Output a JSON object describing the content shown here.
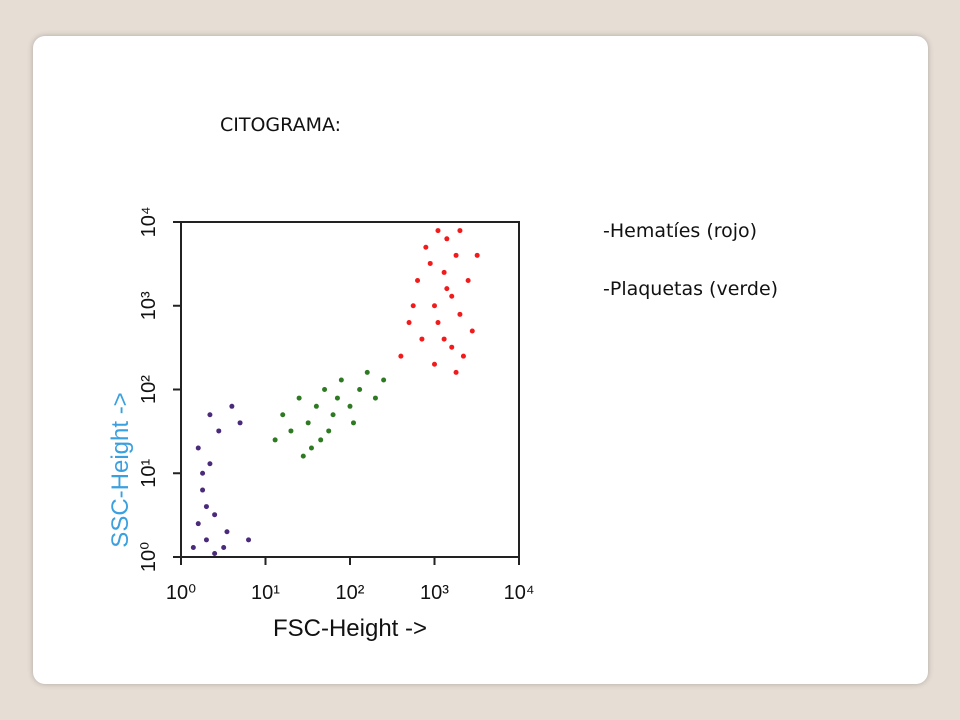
{
  "slide": {
    "heading": "CITOGRAMA:",
    "items": [
      "-Hematíes (rojo)",
      "-Plaquetas (verde)"
    ]
  },
  "chart_data": {
    "type": "scatter",
    "x_label": "FSC-Height ->",
    "y_label": "SSC-Height ->",
    "x_log": true,
    "y_log": true,
    "xlim": [
      1,
      10000
    ],
    "ylim": [
      1,
      10000
    ],
    "xticks": [
      {
        "value": 1,
        "label": "10⁰"
      },
      {
        "value": 10,
        "label": "10¹"
      },
      {
        "value": 100,
        "label": "10²"
      },
      {
        "value": 1000,
        "label": "10³"
      },
      {
        "value": 10000,
        "label": "10⁴"
      }
    ],
    "yticks": [
      {
        "value": 1,
        "label": "10⁰"
      },
      {
        "value": 10,
        "label": "10¹"
      },
      {
        "value": 100,
        "label": "10²"
      },
      {
        "value": 1000,
        "label": "10³"
      },
      {
        "value": 10000,
        "label": "10⁴"
      }
    ],
    "series": [
      {
        "color": "#f21a1a",
        "x": [
          400,
          500,
          630,
          790,
          1000,
          1000,
          1100,
          1300,
          1300,
          1400,
          1600,
          1600,
          1800,
          2000,
          2000,
          2200,
          2500,
          2800,
          3200,
          710,
          890,
          1100,
          1800,
          1400,
          560
        ],
        "values": [
          250,
          630,
          2000,
          5000,
          200,
          1000,
          7900,
          400,
          2500,
          6300,
          320,
          1300,
          4000,
          790,
          7900,
          250,
          2000,
          500,
          4000,
          400,
          3200,
          630,
          160,
          1600,
          1000
        ]
      },
      {
        "color": "#2e7a22",
        "x": [
          13,
          16,
          20,
          25,
          32,
          35,
          40,
          50,
          56,
          63,
          79,
          100,
          130,
          160,
          200,
          28,
          45,
          71,
          110,
          250
        ],
        "values": [
          25,
          50,
          32,
          79,
          40,
          20,
          63,
          100,
          32,
          50,
          130,
          63,
          100,
          160,
          79,
          16,
          25,
          79,
          40,
          130
        ]
      },
      {
        "color": "#4a2a7a",
        "x": [
          1.4,
          1.6,
          1.8,
          2.0,
          2.2,
          1.6,
          2.5,
          2.8,
          3.2,
          4.0,
          2.0,
          1.8,
          3.5,
          5.0,
          2.5,
          6.3,
          2.2
        ],
        "values": [
          1.3,
          2.5,
          6.3,
          1.6,
          13,
          20,
          3.2,
          32,
          1.3,
          63,
          4.0,
          10,
          2.0,
          40,
          1.1,
          1.6,
          50
        ]
      }
    ]
  }
}
